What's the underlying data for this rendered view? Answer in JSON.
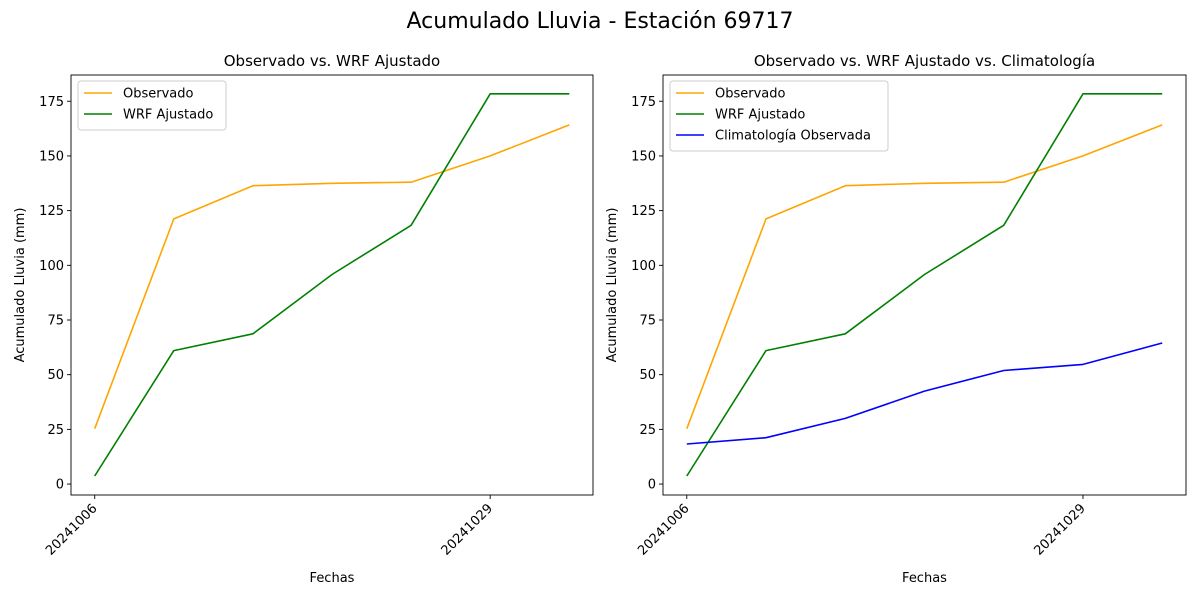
{
  "figure_title": "Acumulado Lluvia - Estación 69717",
  "colors": {
    "observado": "#ffa500",
    "wrf": "#008000",
    "climatologia": "#0000ff"
  },
  "chart_data": [
    {
      "type": "line",
      "title": "Observado vs. WRF Ajustado",
      "xlabel": "Fechas",
      "ylabel": "Acumulado Lluvia (mm)",
      "x_tick_labels": [
        "20241006",
        "20241029"
      ],
      "x": [
        "20241006",
        "",
        "",
        "",
        "",
        "20241029",
        ""
      ],
      "ylim": [
        -5,
        187
      ],
      "y_ticks": [
        0,
        25,
        50,
        75,
        100,
        125,
        150,
        175
      ],
      "grid": false,
      "legend_position": "top-left",
      "series": [
        {
          "name": "Observado",
          "color": "#ffa500",
          "values": [
            25.3,
            121.2,
            136.4,
            137.5,
            138.0,
            150.0,
            164.2
          ]
        },
        {
          "name": "WRF Ajustado",
          "color": "#008000",
          "values": [
            3.7,
            61.0,
            68.7,
            95.8,
            118.3,
            178.4,
            178.4
          ]
        }
      ]
    },
    {
      "type": "line",
      "title": "Observado vs. WRF Ajustado vs. Climatología",
      "xlabel": "Fechas",
      "ylabel": "Acumulado Lluvia (mm)",
      "x_tick_labels": [
        "20241006",
        "20241029"
      ],
      "x": [
        "20241006",
        "",
        "",
        "",
        "",
        "20241029",
        ""
      ],
      "ylim": [
        -5,
        187
      ],
      "y_ticks": [
        0,
        25,
        50,
        75,
        100,
        125,
        150,
        175
      ],
      "grid": false,
      "legend_position": "top-left",
      "series": [
        {
          "name": "Observado",
          "color": "#ffa500",
          "values": [
            25.3,
            121.2,
            136.4,
            137.5,
            138.0,
            150.0,
            164.2
          ]
        },
        {
          "name": "WRF Ajustado",
          "color": "#008000",
          "values": [
            3.7,
            61.0,
            68.7,
            95.8,
            118.3,
            178.4,
            178.4
          ]
        },
        {
          "name": "Climatología Observada",
          "color": "#0000ff",
          "values": [
            18.3,
            21.2,
            30.0,
            42.5,
            51.9,
            54.7,
            64.5
          ]
        }
      ]
    }
  ]
}
